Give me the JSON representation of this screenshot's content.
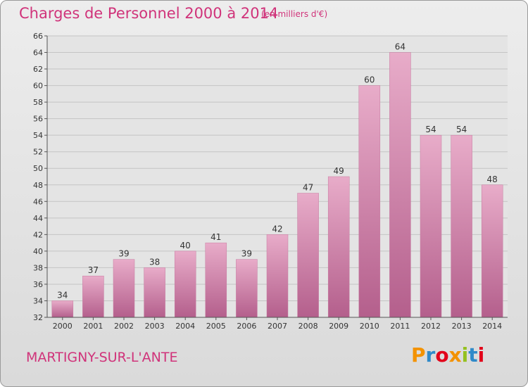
{
  "header": {
    "title": "Charges de Personnel 2000 à 2014",
    "subtitle": "(en milliers d'€)"
  },
  "footer": {
    "city": "MARTIGNY-SUR-L'ANTE",
    "logo_letters": [
      "P",
      "r",
      "o",
      "x",
      "i",
      "t",
      "i"
    ],
    "logo_colors": [
      "#f39200",
      "#2f8ac9",
      "#e2001a",
      "#f39200",
      "#95c11f",
      "#2f8ac9",
      "#e2001a"
    ]
  },
  "chart_data": {
    "type": "bar",
    "title": "Charges de Personnel 2000 à 2014",
    "subtitle": "(en milliers d'€)",
    "categories": [
      "2000",
      "2001",
      "2002",
      "2003",
      "2004",
      "2005",
      "2006",
      "2007",
      "2008",
      "2009",
      "2010",
      "2011",
      "2012",
      "2013",
      "2014"
    ],
    "values": [
      34,
      37,
      39,
      38,
      40,
      41,
      39,
      42,
      47,
      49,
      60,
      64,
      54,
      54,
      48
    ],
    "ylim": [
      32,
      66
    ],
    "yticks": [
      32,
      34,
      36,
      38,
      40,
      42,
      44,
      46,
      48,
      50,
      52,
      54,
      56,
      58,
      60,
      62,
      64,
      66
    ],
    "grid": true,
    "bar_color": "#d57aa8",
    "bar_color_light": "#e8acc9",
    "bar_color_dark": "#b45f8c"
  }
}
